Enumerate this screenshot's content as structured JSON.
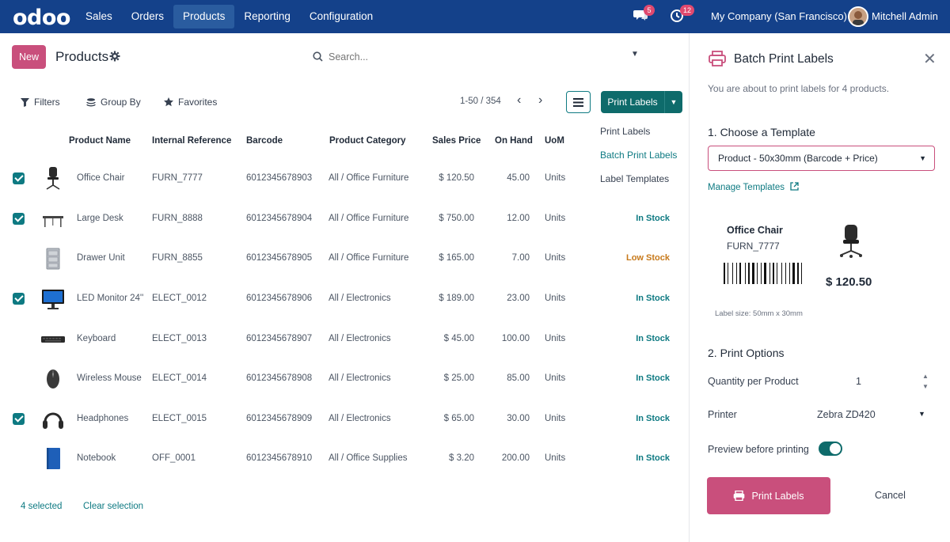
{
  "app": {
    "logo": "odoo",
    "nav": [
      "Sales",
      "Orders",
      "Products",
      "Reporting",
      "Configuration"
    ],
    "active_nav": "Products",
    "messages_count": "5",
    "activities_count": "12",
    "company": "My Company (San Francisco)",
    "user": "Mitchell Admin"
  },
  "control": {
    "new_label": "New",
    "title": "Products",
    "search_placeholder": "Search...",
    "filters": "Filters",
    "group_by": "Group By",
    "favorites": "Favorites",
    "pager": "1-50 / 354",
    "print_labels": "Print Labels"
  },
  "dropdown": {
    "items": [
      "Print Labels",
      "Batch Print Labels",
      "Label Templates"
    ],
    "active": "Batch Print Labels"
  },
  "table": {
    "headers": [
      "Product Name",
      "Internal Reference",
      "Barcode",
      "Product Category",
      "Sales Price",
      "On Hand",
      "UoM"
    ],
    "rows": [
      {
        "selected": true,
        "name": "Office Chair",
        "ref": "FURN_7777",
        "barcode": "6012345678903",
        "category": "All / Office Furniture",
        "price": "$ 120.50",
        "on_hand": "45.00",
        "uom": "Units",
        "stock": ""
      },
      {
        "selected": true,
        "name": "Large Desk",
        "ref": "FURN_8888",
        "barcode": "6012345678904",
        "category": "All / Office Furniture",
        "price": "$ 750.00",
        "on_hand": "12.00",
        "uom": "Units",
        "stock": "In Stock"
      },
      {
        "selected": false,
        "name": "Drawer Unit",
        "ref": "FURN_8855",
        "barcode": "6012345678905",
        "category": "All / Office Furniture",
        "price": "$ 165.00",
        "on_hand": "7.00",
        "uom": "Units",
        "stock": "Low Stock"
      },
      {
        "selected": true,
        "name": "LED Monitor 24''",
        "ref": "ELECT_0012",
        "barcode": "6012345678906",
        "category": "All / Electronics",
        "price": "$ 189.00",
        "on_hand": "23.00",
        "uom": "Units",
        "stock": "In Stock"
      },
      {
        "selected": false,
        "name": "Keyboard",
        "ref": "ELECT_0013",
        "barcode": "6012345678907",
        "category": "All / Electronics",
        "price": "$ 45.00",
        "on_hand": "100.00",
        "uom": "Units",
        "stock": "In Stock"
      },
      {
        "selected": false,
        "name": "Wireless Mouse",
        "ref": "ELECT_0014",
        "barcode": "6012345678908",
        "category": "All / Electronics",
        "price": "$ 25.00",
        "on_hand": "85.00",
        "uom": "Units",
        "stock": "In Stock"
      },
      {
        "selected": true,
        "name": "Headphones",
        "ref": "ELECT_0015",
        "barcode": "6012345678909",
        "category": "All / Electronics",
        "price": "$ 65.00",
        "on_hand": "30.00",
        "uom": "Units",
        "stock": "In Stock"
      },
      {
        "selected": false,
        "name": "Notebook",
        "ref": "OFF_0001",
        "barcode": "6012345678910",
        "category": "All / Office Supplies",
        "price": "$ 3.20",
        "on_hand": "200.00",
        "uom": "Units",
        "stock": "In Stock"
      }
    ]
  },
  "footer": {
    "selected": "4 selected",
    "clear": "Clear selection"
  },
  "panel": {
    "title": "Batch Print Labels",
    "subtitle": "You are about to print labels for 4 products.",
    "section1": "1. Choose a Template",
    "template": "Product - 50x30mm (Barcode + Price)",
    "manage": "Manage Templates",
    "preview": {
      "name": "Office Chair",
      "ref": "FURN_7777",
      "price": "$ 120.50",
      "size": "Label size: 50mm x 30mm"
    },
    "section2": "2. Print Options",
    "qty_label": "Quantity per Product",
    "qty_value": "1",
    "printer_label": "Printer",
    "printer_value": "Zebra ZD420",
    "preview_label": "Preview before printing",
    "preview_enabled": true,
    "print_button": "Print Labels",
    "cancel": "Cancel"
  },
  "colors": {
    "navbar": "#14418a",
    "primary": "#c94f7c",
    "teal": "#0e7a82",
    "low_stock": "#c7791a"
  }
}
